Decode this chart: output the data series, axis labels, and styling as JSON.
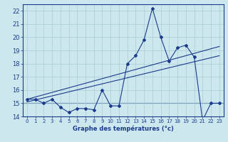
{
  "xlabel": "Graphe des températures (°c)",
  "background_color": "#cce8ee",
  "grid_color": "#aaccd4",
  "line_color": "#1a3a8c",
  "hours": [
    0,
    1,
    2,
    3,
    4,
    5,
    6,
    7,
    8,
    9,
    10,
    11,
    12,
    13,
    14,
    15,
    16,
    17,
    18,
    19,
    20,
    21,
    22,
    23
  ],
  "temp_main": [
    15.3,
    15.3,
    15.0,
    15.3,
    14.7,
    14.3,
    14.6,
    14.6,
    14.5,
    16.0,
    14.8,
    14.8,
    18.0,
    18.6,
    19.8,
    22.2,
    20.0,
    18.2,
    19.2,
    19.4,
    18.5,
    13.7,
    15.0,
    15.0
  ],
  "trend1_x": [
    0,
    23
  ],
  "trend1_y": [
    15.3,
    19.3
  ],
  "trend2_x": [
    0,
    23
  ],
  "trend2_y": [
    15.1,
    18.6
  ],
  "hline_y": 15.0,
  "ylim": [
    14.0,
    22.5
  ],
  "xlim": [
    -0.5,
    23.5
  ],
  "yticks": [
    14,
    15,
    16,
    17,
    18,
    19,
    20,
    21,
    22
  ],
  "xticks": [
    0,
    1,
    2,
    3,
    4,
    5,
    6,
    7,
    8,
    9,
    10,
    11,
    12,
    13,
    14,
    15,
    16,
    17,
    18,
    19,
    20,
    21,
    22,
    23
  ],
  "xtick_labels": [
    "0",
    "1",
    "2",
    "3",
    "4",
    "5",
    "6",
    "7",
    "8",
    "9",
    "10",
    "11",
    "12",
    "13",
    "14",
    "15",
    "16",
    "17",
    "18",
    "19",
    "20",
    "21",
    "22",
    "23"
  ],
  "ytick_labels": [
    "14",
    "15",
    "16",
    "17",
    "18",
    "19",
    "20",
    "21",
    "22"
  ],
  "tick_fontsize": 5,
  "xlabel_fontsize": 6,
  "marker_size": 2.0,
  "line_width": 0.8
}
